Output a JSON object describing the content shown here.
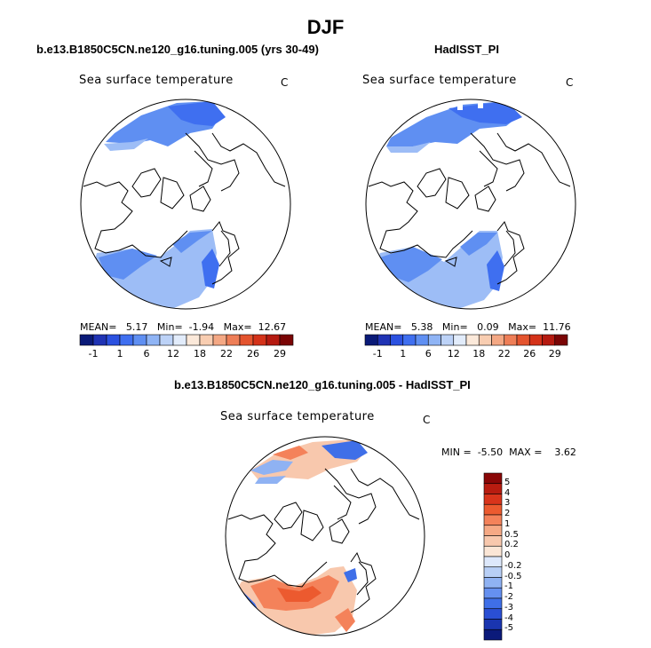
{
  "title": "DJF",
  "panels": [
    {
      "id": "model",
      "title": "b.e13.B1850C5CN.ne120_g16.tuning.005 (yrs 30-49)",
      "variable": "Sea surface temperature",
      "units": "C",
      "stats": {
        "mean_label": "MEAN=",
        "mean": "5.17",
        "min_label": "Min=",
        "min": "-1.94",
        "max_label": "Max=",
        "max": "12.67"
      }
    },
    {
      "id": "obs",
      "title": "HadISST_PI",
      "variable": "Sea surface temperature",
      "units": "C",
      "stats": {
        "mean_label": "MEAN=",
        "mean": "5.38",
        "min_label": "Min=",
        "min": "0.09",
        "max_label": "Max=",
        "max": "11.76"
      }
    },
    {
      "id": "diff",
      "title": "b.e13.B1850C5CN.ne120_g16.tuning.005 - HadISST_PI",
      "variable": "Sea surface temperature",
      "units": "C",
      "stats": {
        "min_label": "MIN =",
        "min": "-5.50",
        "max_label": "MAX =",
        "max": "3.62"
      }
    }
  ],
  "colorbar_horizontal": {
    "colors": [
      "#0a1a78",
      "#1f33b4",
      "#2b51e0",
      "#3f6ff0",
      "#5f8ff2",
      "#8fb4f5",
      "#bcd2f7",
      "#e2ecfb",
      "#fbe9da",
      "#f8cdb1",
      "#f4a884",
      "#ee7e57",
      "#e4542e",
      "#d43219",
      "#b51a10",
      "#7a0505"
    ],
    "tick_labels": [
      "-1",
      "1",
      "6",
      "12",
      "18",
      "22",
      "26",
      "29"
    ]
  },
  "colorbar_vertical": {
    "colors": [
      "#8a0707",
      "#b81c10",
      "#d9341b",
      "#ec5a2f",
      "#f4825a",
      "#f6a985",
      "#f8c8ad",
      "#fbe6d6",
      "#dde8fb",
      "#b8cff6",
      "#8fb2f3",
      "#6590f0",
      "#3f6fe8",
      "#2a4fd4",
      "#1a35b0",
      "#0b1a7a"
    ],
    "tick_labels": [
      "5",
      "4",
      "3",
      "2",
      "1",
      "0.5",
      "0.2",
      "0",
      "-0.2",
      "-0.5",
      "-1",
      "-2",
      "-3",
      "-4",
      "-5"
    ]
  },
  "map_colors": {
    "sst_light": "#9dbdf6",
    "sst_mid": "#5f8ff2",
    "sst_dark": "#3f6ff0",
    "diff_warm_light": "#f8c8ad",
    "diff_warm": "#f4825a",
    "diff_warm_dark": "#ec5a2f",
    "diff_cold": "#3f6fe8",
    "diff_cold_dark": "#1a35b0",
    "diff_cold_light": "#8fb2f3"
  }
}
